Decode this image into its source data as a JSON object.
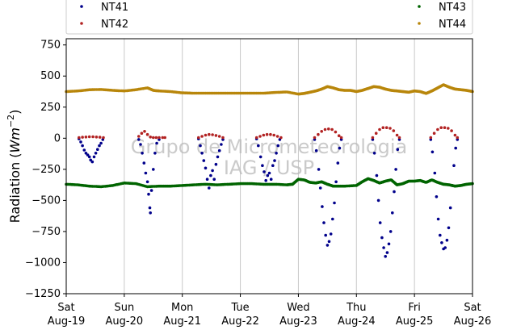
{
  "chart_data": {
    "type": "scatter",
    "ylabel": "Radiation (Wm^-2)",
    "ylim": [
      -1250,
      800
    ],
    "xlim": [
      0,
      7
    ],
    "yticks": [
      -1250,
      -1000,
      -750,
      -500,
      -250,
      0,
      250,
      500,
      750
    ],
    "ytick_labels": [
      "−1250",
      "−1000",
      "−750",
      "−500",
      "−250",
      "0",
      "250",
      "500",
      "750"
    ],
    "xticks": [
      {
        "x": 0,
        "day": "Sat",
        "date": "Aug-19"
      },
      {
        "x": 1,
        "day": "Sun",
        "date": "Aug-20"
      },
      {
        "x": 2,
        "day": "Mon",
        "date": "Aug-21"
      },
      {
        "x": 3,
        "day": "Tue",
        "date": "Aug-22"
      },
      {
        "x": 4,
        "day": "Wed",
        "date": "Aug-23"
      },
      {
        "x": 5,
        "day": "Thu",
        "date": "Aug-24"
      },
      {
        "x": 6,
        "day": "Fri",
        "date": "Aug-25"
      },
      {
        "x": 7,
        "day": "Sat",
        "date": "Aug-26"
      }
    ],
    "grid": "vertical",
    "legend_position": "top",
    "watermark": [
      "Grupo de Micrometeorologia",
      "IAG / USP"
    ],
    "series": [
      {
        "name": "NT41",
        "color": "#00008b",
        "points": [
          [
            0.22,
            -5
          ],
          [
            0.25,
            -30
          ],
          [
            0.28,
            -60
          ],
          [
            0.31,
            -95
          ],
          [
            0.34,
            -120
          ],
          [
            0.37,
            -135
          ],
          [
            0.4,
            -150
          ],
          [
            0.42,
            -175
          ],
          [
            0.45,
            -190
          ],
          [
            0.48,
            -150
          ],
          [
            0.51,
            -120
          ],
          [
            0.54,
            -90
          ],
          [
            0.57,
            -60
          ],
          [
            0.6,
            -40
          ],
          [
            0.63,
            -10
          ],
          [
            1.25,
            -10
          ],
          [
            1.28,
            -50
          ],
          [
            1.31,
            -120
          ],
          [
            1.34,
            -200
          ],
          [
            1.37,
            -280
          ],
          [
            1.4,
            -350
          ],
          [
            1.42,
            -450
          ],
          [
            1.44,
            -560
          ],
          [
            1.45,
            -600
          ],
          [
            1.47,
            -420
          ],
          [
            1.5,
            -250
          ],
          [
            1.53,
            -120
          ],
          [
            1.56,
            -40
          ],
          [
            1.6,
            -10
          ],
          [
            2.28,
            -5
          ],
          [
            2.31,
            -60
          ],
          [
            2.34,
            -120
          ],
          [
            2.37,
            -180
          ],
          [
            2.4,
            -240
          ],
          [
            2.43,
            -330
          ],
          [
            2.46,
            -400
          ],
          [
            2.49,
            -300
          ],
          [
            2.52,
            -260
          ],
          [
            2.55,
            -330
          ],
          [
            2.58,
            -210
          ],
          [
            2.61,
            -150
          ],
          [
            2.64,
            -100
          ],
          [
            2.67,
            -50
          ],
          [
            2.7,
            -10
          ],
          [
            3.28,
            -5
          ],
          [
            3.31,
            -60
          ],
          [
            3.35,
            -150
          ],
          [
            3.38,
            -220
          ],
          [
            3.41,
            -270
          ],
          [
            3.44,
            -340
          ],
          [
            3.47,
            -300
          ],
          [
            3.5,
            -280
          ],
          [
            3.53,
            -330
          ],
          [
            3.56,
            -220
          ],
          [
            3.59,
            -180
          ],
          [
            3.62,
            -120
          ],
          [
            3.65,
            -60
          ],
          [
            3.68,
            -10
          ],
          [
            4.28,
            -10
          ],
          [
            4.31,
            -100
          ],
          [
            4.35,
            -250
          ],
          [
            4.38,
            -400
          ],
          [
            4.41,
            -550
          ],
          [
            4.44,
            -680
          ],
          [
            4.47,
            -780
          ],
          [
            4.5,
            -860
          ],
          [
            4.53,
            -830
          ],
          [
            4.56,
            -770
          ],
          [
            4.59,
            -650
          ],
          [
            4.62,
            -520
          ],
          [
            4.65,
            -350
          ],
          [
            4.68,
            -200
          ],
          [
            4.71,
            -80
          ],
          [
            4.74,
            -10
          ],
          [
            5.28,
            -10
          ],
          [
            5.31,
            -120
          ],
          [
            5.35,
            -300
          ],
          [
            5.38,
            -500
          ],
          [
            5.41,
            -680
          ],
          [
            5.44,
            -800
          ],
          [
            5.47,
            -880
          ],
          [
            5.5,
            -950
          ],
          [
            5.53,
            -920
          ],
          [
            5.56,
            -850
          ],
          [
            5.59,
            -750
          ],
          [
            5.62,
            -600
          ],
          [
            5.65,
            -430
          ],
          [
            5.68,
            -250
          ],
          [
            5.71,
            -90
          ],
          [
            5.74,
            -10
          ],
          [
            6.28,
            -10
          ],
          [
            6.31,
            -110
          ],
          [
            6.35,
            -280
          ],
          [
            6.38,
            -470
          ],
          [
            6.41,
            -650
          ],
          [
            6.44,
            -780
          ],
          [
            6.47,
            -840
          ],
          [
            6.5,
            -890
          ],
          [
            6.53,
            -880
          ],
          [
            6.56,
            -820
          ],
          [
            6.59,
            -720
          ],
          [
            6.62,
            -560
          ],
          [
            6.65,
            -380
          ],
          [
            6.68,
            -220
          ],
          [
            6.71,
            -80
          ],
          [
            6.74,
            -10
          ]
        ]
      },
      {
        "name": "NT42",
        "color": "#b22222",
        "points": [
          [
            0.22,
            5
          ],
          [
            0.28,
            8
          ],
          [
            0.34,
            10
          ],
          [
            0.4,
            12
          ],
          [
            0.46,
            12
          ],
          [
            0.52,
            10
          ],
          [
            0.58,
            8
          ],
          [
            0.64,
            5
          ],
          [
            1.25,
            15
          ],
          [
            1.3,
            40
          ],
          [
            1.35,
            55
          ],
          [
            1.4,
            30
          ],
          [
            1.45,
            10
          ],
          [
            1.5,
            5
          ],
          [
            1.55,
            5
          ],
          [
            1.6,
            5
          ],
          [
            1.66,
            5
          ],
          [
            1.7,
            5
          ],
          [
            2.28,
            5
          ],
          [
            2.34,
            15
          ],
          [
            2.4,
            25
          ],
          [
            2.46,
            30
          ],
          [
            2.52,
            28
          ],
          [
            2.58,
            22
          ],
          [
            2.64,
            15
          ],
          [
            2.7,
            5
          ],
          [
            3.28,
            5
          ],
          [
            3.34,
            15
          ],
          [
            3.4,
            25
          ],
          [
            3.46,
            30
          ],
          [
            3.52,
            30
          ],
          [
            3.58,
            25
          ],
          [
            3.64,
            15
          ],
          [
            3.7,
            5
          ],
          [
            4.28,
            5
          ],
          [
            4.34,
            30
          ],
          [
            4.4,
            55
          ],
          [
            4.46,
            70
          ],
          [
            4.52,
            75
          ],
          [
            4.58,
            70
          ],
          [
            4.64,
            50
          ],
          [
            4.7,
            20
          ],
          [
            4.74,
            5
          ],
          [
            5.28,
            5
          ],
          [
            5.34,
            40
          ],
          [
            5.4,
            70
          ],
          [
            5.46,
            85
          ],
          [
            5.52,
            85
          ],
          [
            5.58,
            80
          ],
          [
            5.64,
            60
          ],
          [
            5.7,
            25
          ],
          [
            5.74,
            5
          ],
          [
            6.28,
            5
          ],
          [
            6.34,
            40
          ],
          [
            6.4,
            70
          ],
          [
            6.46,
            85
          ],
          [
            6.52,
            85
          ],
          [
            6.58,
            80
          ],
          [
            6.64,
            60
          ],
          [
            6.7,
            25
          ],
          [
            6.74,
            5
          ]
        ]
      },
      {
        "name": "NT43",
        "color": "#006400",
        "points": [
          [
            0,
            -370
          ],
          [
            0.2,
            -375
          ],
          [
            0.4,
            -385
          ],
          [
            0.6,
            -390
          ],
          [
            0.8,
            -380
          ],
          [
            1,
            -360
          ],
          [
            1.2,
            -365
          ],
          [
            1.4,
            -390
          ],
          [
            1.6,
            -385
          ],
          [
            1.8,
            -385
          ],
          [
            2,
            -380
          ],
          [
            2.2,
            -375
          ],
          [
            2.4,
            -370
          ],
          [
            2.6,
            -375
          ],
          [
            2.8,
            -370
          ],
          [
            3,
            -365
          ],
          [
            3.2,
            -365
          ],
          [
            3.4,
            -370
          ],
          [
            3.6,
            -370
          ],
          [
            3.8,
            -375
          ],
          [
            3.9,
            -370
          ],
          [
            4,
            -330
          ],
          [
            4.1,
            -335
          ],
          [
            4.2,
            -355
          ],
          [
            4.3,
            -360
          ],
          [
            4.4,
            -350
          ],
          [
            4.5,
            -370
          ],
          [
            4.6,
            -385
          ],
          [
            4.8,
            -385
          ],
          [
            5,
            -380
          ],
          [
            5.1,
            -350
          ],
          [
            5.2,
            -325
          ],
          [
            5.3,
            -340
          ],
          [
            5.4,
            -360
          ],
          [
            5.5,
            -345
          ],
          [
            5.6,
            -335
          ],
          [
            5.7,
            -375
          ],
          [
            5.8,
            -365
          ],
          [
            5.9,
            -345
          ],
          [
            6,
            -345
          ],
          [
            6.1,
            -340
          ],
          [
            6.2,
            -355
          ],
          [
            6.3,
            -335
          ],
          [
            6.4,
            -355
          ],
          [
            6.5,
            -370
          ],
          [
            6.6,
            -375
          ],
          [
            6.7,
            -385
          ],
          [
            6.8,
            -380
          ],
          [
            6.9,
            -370
          ],
          [
            7,
            -365
          ]
        ]
      },
      {
        "name": "NT44",
        "color": "#b8860b",
        "points": [
          [
            0,
            375
          ],
          [
            0.2,
            380
          ],
          [
            0.4,
            390
          ],
          [
            0.6,
            392
          ],
          [
            0.8,
            385
          ],
          [
            1,
            380
          ],
          [
            1.2,
            390
          ],
          [
            1.4,
            405
          ],
          [
            1.5,
            385
          ],
          [
            1.6,
            380
          ],
          [
            1.8,
            375
          ],
          [
            2,
            365
          ],
          [
            2.2,
            362
          ],
          [
            2.4,
            362
          ],
          [
            2.6,
            362
          ],
          [
            2.8,
            362
          ],
          [
            3,
            362
          ],
          [
            3.2,
            362
          ],
          [
            3.4,
            362
          ],
          [
            3.6,
            368
          ],
          [
            3.8,
            372
          ],
          [
            4,
            355
          ],
          [
            4.1,
            360
          ],
          [
            4.2,
            370
          ],
          [
            4.3,
            380
          ],
          [
            4.4,
            395
          ],
          [
            4.5,
            415
          ],
          [
            4.6,
            405
          ],
          [
            4.7,
            390
          ],
          [
            4.8,
            385
          ],
          [
            4.9,
            385
          ],
          [
            5,
            375
          ],
          [
            5.1,
            385
          ],
          [
            5.2,
            400
          ],
          [
            5.3,
            415
          ],
          [
            5.4,
            410
          ],
          [
            5.5,
            395
          ],
          [
            5.6,
            385
          ],
          [
            5.7,
            380
          ],
          [
            5.8,
            375
          ],
          [
            5.9,
            370
          ],
          [
            6,
            380
          ],
          [
            6.1,
            375
          ],
          [
            6.2,
            360
          ],
          [
            6.3,
            380
          ],
          [
            6.4,
            405
          ],
          [
            6.5,
            430
          ],
          [
            6.6,
            410
          ],
          [
            6.7,
            395
          ],
          [
            6.8,
            390
          ],
          [
            6.9,
            385
          ],
          [
            7,
            375
          ]
        ]
      }
    ]
  }
}
